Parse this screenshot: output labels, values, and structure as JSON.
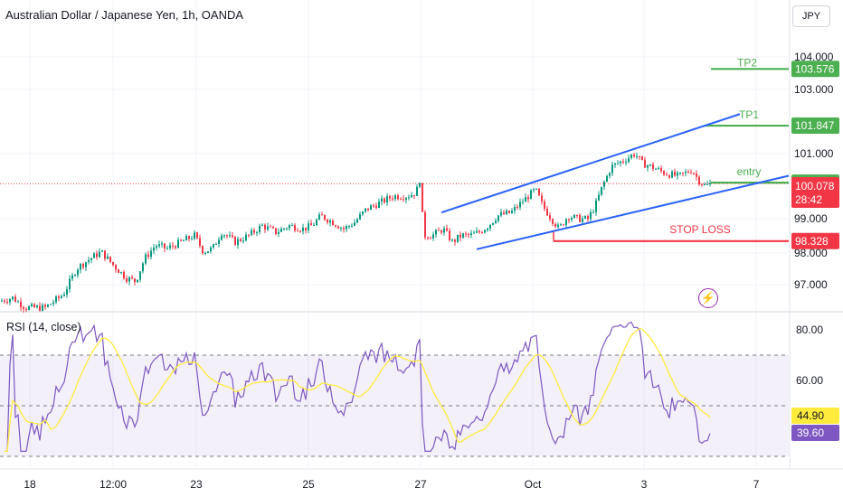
{
  "header": {
    "title": "Australian Dollar / Japanese Yen, 1h, OANDA",
    "currency_button": "JPY",
    "rsi_title": "RSI (14, close)",
    "alert_icon": "lightning-bolt-icon"
  },
  "chart_data": [
    {
      "type": "candlestick",
      "symbol": "AUDJPY",
      "interval": "1h",
      "ylim": [
        96.4,
        104.8
      ],
      "y_ticks": [
        "97.000",
        "98.000",
        "99.000",
        "101.000",
        "103.000",
        "104.000"
      ],
      "x_ticks": [
        "18",
        "12:00",
        "23",
        "25",
        "27",
        "Oct",
        "3",
        "7"
      ],
      "close_path": [
        [
          0,
          96.5
        ],
        [
          14,
          96.6
        ],
        [
          28,
          96.3
        ],
        [
          50,
          96.3
        ],
        [
          70,
          96.7
        ],
        [
          85,
          97.5
        ],
        [
          100,
          97.8
        ],
        [
          112,
          98.0
        ],
        [
          125,
          97.6
        ],
        [
          140,
          97.2
        ],
        [
          150,
          97.1
        ],
        [
          160,
          97.8
        ],
        [
          172,
          98.2
        ],
        [
          185,
          98.1
        ],
        [
          200,
          98.3
        ],
        [
          215,
          98.5
        ],
        [
          225,
          98.0
        ],
        [
          235,
          98.1
        ],
        [
          245,
          98.6
        ],
        [
          260,
          98.3
        ],
        [
          275,
          98.5
        ],
        [
          290,
          98.8
        ],
        [
          305,
          98.6
        ],
        [
          320,
          98.8
        ],
        [
          335,
          98.7
        ],
        [
          345,
          98.8
        ],
        [
          355,
          99.1
        ],
        [
          368,
          98.9
        ],
        [
          380,
          98.7
        ],
        [
          392,
          98.9
        ],
        [
          405,
          99.3
        ],
        [
          420,
          99.5
        ],
        [
          435,
          99.7
        ],
        [
          450,
          99.7
        ],
        [
          460,
          99.8
        ],
        [
          465,
          100.3
        ],
        [
          468,
          98.5
        ],
        [
          478,
          98.5
        ],
        [
          490,
          98.7
        ],
        [
          500,
          98.3
        ],
        [
          510,
          98.5
        ],
        [
          520,
          98.5
        ],
        [
          530,
          98.6
        ],
        [
          540,
          98.8
        ],
        [
          550,
          99.1
        ],
        [
          565,
          99.2
        ],
        [
          580,
          99.6
        ],
        [
          592,
          99.9
        ],
        [
          600,
          99.4
        ],
        [
          610,
          99.0
        ],
        [
          618,
          98.7
        ],
        [
          628,
          99.1
        ],
        [
          640,
          99.0
        ],
        [
          650,
          99.0
        ],
        [
          658,
          99.4
        ],
        [
          666,
          100.0
        ],
        [
          676,
          100.6
        ],
        [
          690,
          100.8
        ],
        [
          702,
          101.0
        ],
        [
          710,
          100.7
        ],
        [
          720,
          100.6
        ],
        [
          735,
          100.4
        ],
        [
          750,
          100.3
        ],
        [
          765,
          100.5
        ],
        [
          772,
          100.2
        ],
        [
          780,
          100.0
        ],
        [
          787,
          100.1
        ]
      ],
      "last_price": "100.078",
      "countdown": "28:42",
      "annotations": {
        "tp2": {
          "label": "TP2",
          "price": "103.576",
          "color": "#4caf50"
        },
        "tp1": {
          "label": "TP1",
          "price": "101.847",
          "color": "#4caf50"
        },
        "entry": {
          "label": "entry",
          "price": "100.110",
          "color": "#4caf50"
        },
        "stop_loss": {
          "label": "STOP LOSS",
          "price": "98.328",
          "color": "#f23645"
        }
      },
      "channel_color": "#2962ff"
    },
    {
      "type": "line",
      "name": "RSI (14, close)",
      "ylim": [
        30,
        85
      ],
      "y_ticks": [
        "80.00",
        "60.00"
      ],
      "levels": [
        70,
        50,
        30
      ],
      "rsi_label": "39.60",
      "rsi_color": "#7e57c2",
      "ma_label": "44.90",
      "ma_color": "#ffeb3b"
    }
  ],
  "colors": {
    "up": "#089981",
    "down": "#f23645",
    "grid": "#f0f3fa",
    "axis_text": "#131722"
  }
}
